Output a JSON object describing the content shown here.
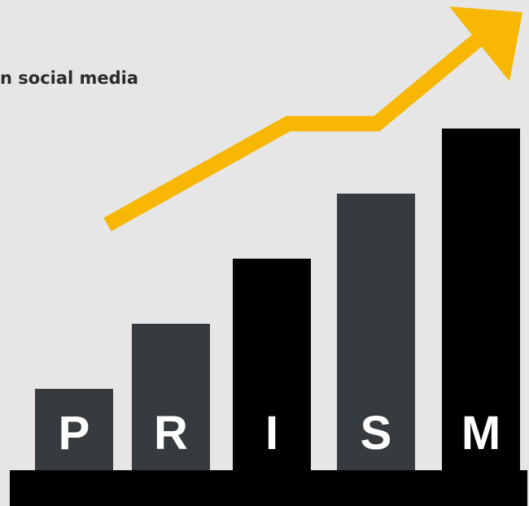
{
  "headline": "n social media",
  "colors": {
    "background": "#e6e6e6",
    "arrow": "#f7b704",
    "bar_gray": "#363b40",
    "bar_black": "#000000"
  },
  "chart_data": {
    "type": "bar",
    "categories": [
      "P",
      "R",
      "I",
      "S",
      "M"
    ],
    "values": [
      1,
      2,
      3,
      4,
      5
    ],
    "ylim": [
      0,
      5
    ],
    "colors": [
      "#363b40",
      "#363b40",
      "#000000",
      "#363b40",
      "#000000"
    ],
    "grid": false,
    "trend_arrow": "up-right"
  }
}
